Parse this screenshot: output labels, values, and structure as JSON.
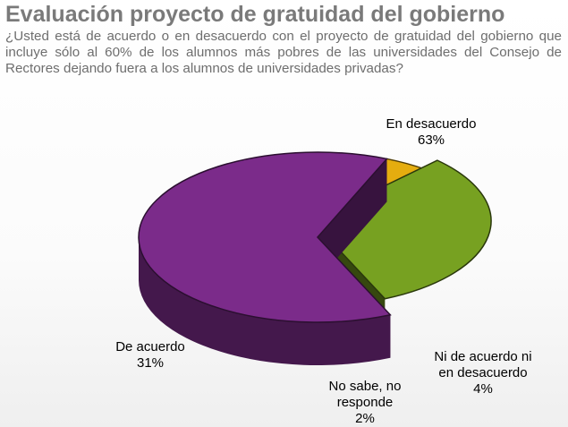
{
  "title": "Evaluación proyecto de gratuidad del gobierno",
  "subtitle": "¿Usted está de acuerdo o en desacuerdo con el proyecto de gratuidad del gobierno que incluye sólo al 60% de los alumnos más pobres de las universidades del Consejo de Rectores dejando fuera a los alumnos de universidades privadas?",
  "chart_data": {
    "type": "pie",
    "title": "Evaluación proyecto de gratuidad del gobierno",
    "slices": [
      {
        "key": "en-desacuerdo",
        "lines": [
          "En desacuerdo"
        ],
        "pct_label": "63%",
        "value": 63,
        "color": "#7b2b8a"
      },
      {
        "key": "ni-de-acuerdo-ni-en-desacuerdo",
        "lines": [
          "Ni de acuerdo ni",
          "en desacuerdo"
        ],
        "pct_label": "4%",
        "value": 4,
        "color": "#e5ad0f"
      },
      {
        "key": "no-sabe-no-responde",
        "lines": [
          "No sabe, no",
          "responde"
        ],
        "pct_label": "2%",
        "value": 2,
        "color": "#c0c0c0"
      },
      {
        "key": "de-acuerdo",
        "lines": [
          "De acuerdo"
        ],
        "pct_label": "31%",
        "value": 31,
        "color": "#77a121"
      }
    ]
  }
}
